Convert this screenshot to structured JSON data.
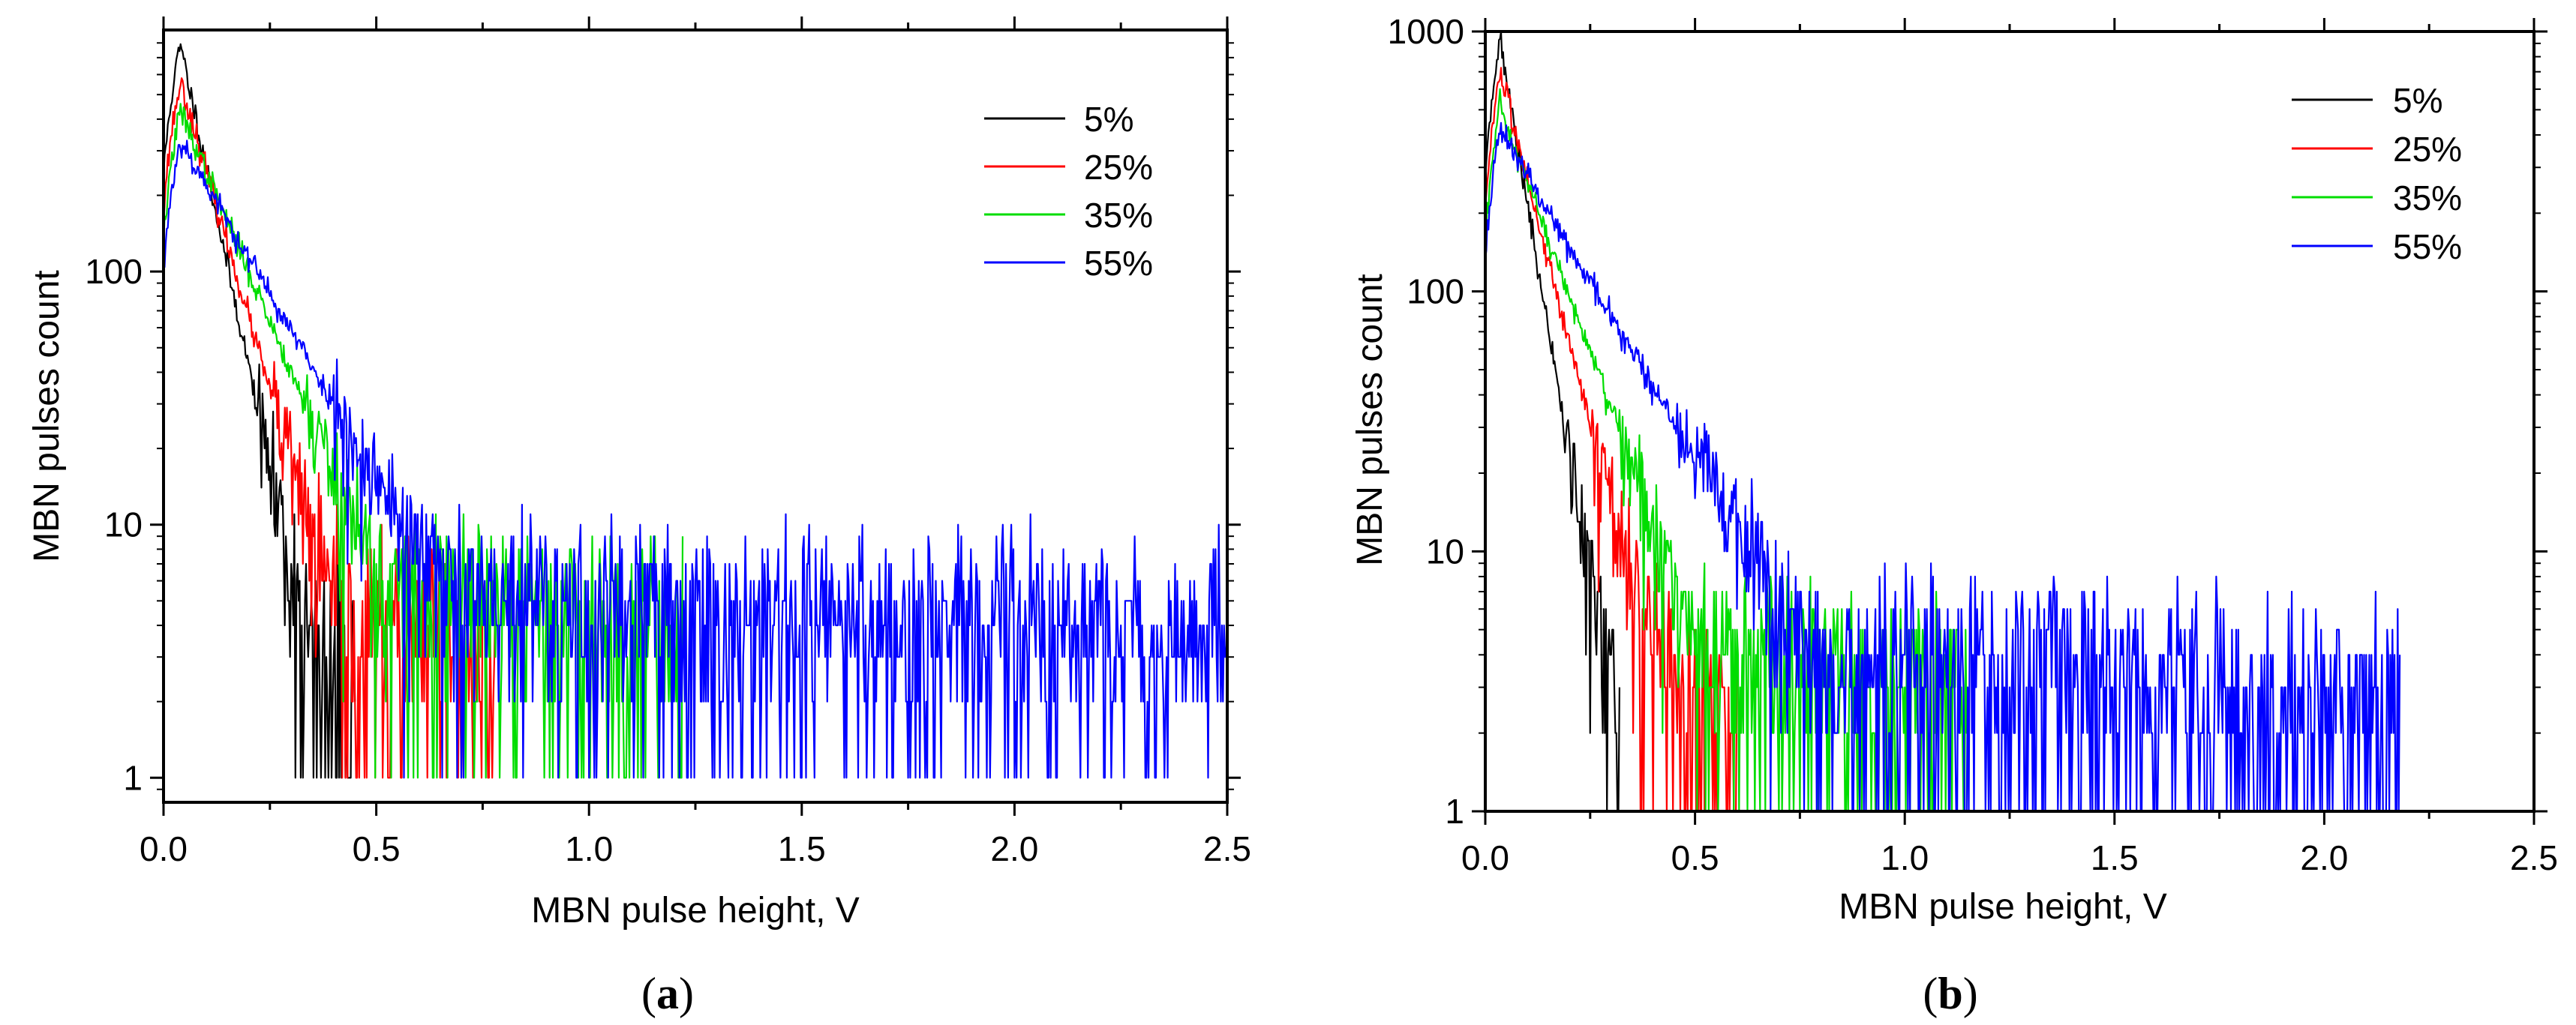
{
  "chart_data": [
    {
      "type": "line",
      "panel_label": "a",
      "caption_open": "(",
      "caption_close": ")",
      "xlabel": "MBN pulse height, V",
      "ylabel": "MBN pulses count",
      "xscale": "linear",
      "yscale": "log",
      "xlim": [
        0.0,
        2.5
      ],
      "ylim": [
        0.8,
        900
      ],
      "xticks": [
        "0.0",
        "0.5",
        "1.0",
        "1.5",
        "2.0",
        "2.5"
      ],
      "xtick_values": [
        0.0,
        0.5,
        1.0,
        1.5,
        2.0,
        2.5
      ],
      "yticks": [
        "1",
        "10",
        "100"
      ],
      "ytick_values": [
        1,
        10,
        100
      ],
      "legend_position": "top-right",
      "series": [
        {
          "name": "5%",
          "color": "#000000",
          "peak_x": 0.04,
          "peak": 780,
          "decay": 0.055,
          "floor_start": 0.2,
          "floor_level": 3,
          "end": 0.45,
          "seed": 11
        },
        {
          "name": "25%",
          "color": "#ff0000",
          "peak_x": 0.04,
          "peak": 560,
          "decay": 0.075,
          "floor_start": 0.3,
          "floor_level": 4,
          "end": 0.78,
          "seed": 23
        },
        {
          "name": "35%",
          "color": "#00dd00",
          "peak_x": 0.04,
          "peak": 430,
          "decay": 0.11,
          "floor_start": 0.45,
          "floor_level": 5,
          "end": 1.22,
          "seed": 37
        },
        {
          "name": "55%",
          "color": "#0000ff",
          "peak_x": 0.04,
          "peak": 330,
          "decay": 0.15,
          "floor_start": 0.6,
          "floor_level": 5,
          "end": 2.5,
          "seed": 53
        }
      ]
    },
    {
      "type": "line",
      "panel_label": "b",
      "caption_open": "(",
      "caption_close": ")",
      "xlabel": "MBN pulse height, V",
      "ylabel": "MBN pulses count",
      "xscale": "linear",
      "yscale": "log",
      "xlim": [
        0.0,
        2.5
      ],
      "ylim": [
        1,
        1000
      ],
      "xticks": [
        "0.0",
        "0.5",
        "1.0",
        "1.5",
        "2.0",
        "2.5"
      ],
      "xtick_values": [
        0.0,
        0.5,
        1.0,
        1.5,
        2.0,
        2.5
      ],
      "yticks": [
        "1",
        "10",
        "100",
        "1000"
      ],
      "ytick_values": [
        1,
        10,
        100,
        1000
      ],
      "legend_position": "top-right",
      "series": [
        {
          "name": "5%",
          "color": "#000000",
          "peak_x": 0.035,
          "peak": 920,
          "decay": 0.045,
          "floor_start": 0.17,
          "floor_level": 2.5,
          "end": 0.32,
          "seed": 71
        },
        {
          "name": "25%",
          "color": "#ff0000",
          "peak_x": 0.035,
          "peak": 680,
          "decay": 0.07,
          "floor_start": 0.27,
          "floor_level": 3,
          "end": 0.6,
          "seed": 83
        },
        {
          "name": "35%",
          "color": "#00dd00",
          "peak_x": 0.035,
          "peak": 500,
          "decay": 0.1,
          "floor_start": 0.45,
          "floor_level": 3.5,
          "end": 1.15,
          "seed": 97
        },
        {
          "name": "55%",
          "color": "#0000ff",
          "peak_x": 0.035,
          "peak": 420,
          "decay": 0.16,
          "floor_start": 0.6,
          "floor_level": 3.5,
          "end": 2.18,
          "seed": 109
        }
      ]
    }
  ]
}
